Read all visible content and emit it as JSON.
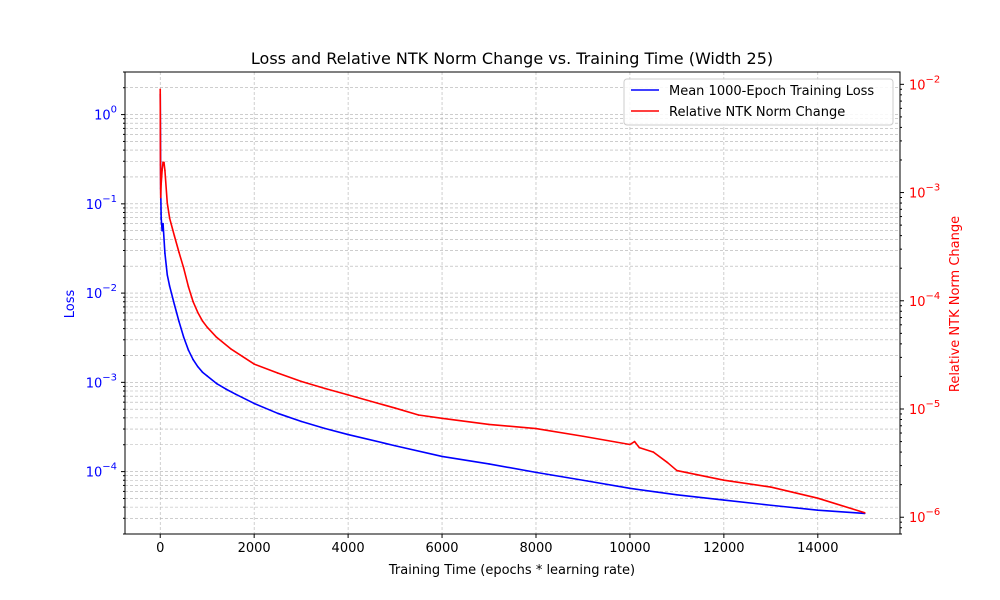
{
  "chart_data": {
    "type": "line",
    "title": "Loss and Relative NTK Norm Change vs. Training Time (Width 25)",
    "xlabel": "Training Time (epochs * learning rate)",
    "ylabel_left": "Loss",
    "ylabel_right": "Relative NTK Norm Change",
    "xlim": [
      -750,
      15750
    ],
    "ylim_left": [
      2e-05,
      3.0
    ],
    "ylim_right": [
      7e-07,
      0.013
    ],
    "y_scale": "log",
    "grid": true,
    "legend_position": "top-right",
    "x_ticks": [
      {
        "value": 0,
        "label": "0"
      },
      {
        "value": 2000,
        "label": "2000"
      },
      {
        "value": 4000,
        "label": "4000"
      },
      {
        "value": 6000,
        "label": "6000"
      },
      {
        "value": 8000,
        "label": "8000"
      },
      {
        "value": 10000,
        "label": "10000"
      },
      {
        "value": 12000,
        "label": "12000"
      },
      {
        "value": 14000,
        "label": "14000"
      }
    ],
    "y_ticks_left": [
      {
        "value": 1,
        "label": "10^0"
      },
      {
        "value": 0.1,
        "label": "10^-1"
      },
      {
        "value": 0.01,
        "label": "10^-2"
      },
      {
        "value": 0.001,
        "label": "10^-3"
      },
      {
        "value": 0.0001,
        "label": "10^-4"
      }
    ],
    "y_ticks_right": [
      {
        "value": 0.01,
        "label": "10^-2"
      },
      {
        "value": 0.001,
        "label": "10^-3"
      },
      {
        "value": 0.0001,
        "label": "10^-4"
      },
      {
        "value": 1e-05,
        "label": "10^-5"
      },
      {
        "value": 1e-06,
        "label": "10^-6"
      }
    ],
    "series": [
      {
        "name": "Mean 1000-Epoch Training Loss",
        "color": "#0000ff",
        "axis": "left",
        "x": [
          0,
          5,
          10,
          20,
          40,
          60,
          100,
          150,
          200,
          300,
          400,
          500,
          600,
          700,
          800,
          900,
          1000,
          1200,
          1400,
          1600,
          2000,
          2500,
          3000,
          3500,
          4000,
          5000,
          6000,
          7000,
          8000,
          9000,
          10000,
          11000,
          12000,
          13000,
          14000,
          15000
        ],
        "values": [
          1.7,
          0.6,
          0.15,
          0.07,
          0.05,
          0.06,
          0.028,
          0.016,
          0.012,
          0.0075,
          0.0048,
          0.0032,
          0.0023,
          0.0018,
          0.0015,
          0.0013,
          0.00118,
          0.00097,
          0.00084,
          0.00074,
          0.00058,
          0.00045,
          0.000365,
          0.000305,
          0.00026,
          0.000195,
          0.000148,
          0.000122,
          9.8e-05,
          8e-05,
          6.5e-05,
          5.5e-05,
          4.8e-05,
          4.2e-05,
          3.7e-05,
          3.4e-05
        ]
      },
      {
        "name": "Relative NTK Norm Change",
        "color": "#ff0000",
        "axis": "right",
        "x": [
          0,
          5,
          10,
          20,
          40,
          60,
          80,
          100,
          150,
          200,
          300,
          400,
          500,
          600,
          700,
          800,
          900,
          1000,
          1200,
          1500,
          2000,
          2500,
          3000,
          3500,
          4000,
          5000,
          5500,
          6000,
          7000,
          8000,
          9000,
          10000,
          10100,
          10200,
          10500,
          10800,
          11000,
          12000,
          13000,
          14000,
          15000
        ],
        "values": [
          0.009,
          0.0018,
          0.0009,
          0.0012,
          0.0016,
          0.0019,
          0.0019,
          0.0016,
          0.0008,
          0.00058,
          0.0004,
          0.00028,
          0.0002,
          0.000135,
          9.8e-05,
          7.8e-05,
          6.5e-05,
          5.7e-05,
          4.6e-05,
          3.6e-05,
          2.6e-05,
          2.15e-05,
          1.8e-05,
          1.55e-05,
          1.35e-05,
          1.02e-05,
          8.8e-06,
          8.2e-06,
          7.2e-06,
          6.6e-06,
          5.6e-06,
          4.7e-06,
          5e-06,
          4.4e-06,
          4e-06,
          3.2e-06,
          2.7e-06,
          2.2e-06,
          1.9e-06,
          1.5e-06,
          1.1e-06
        ]
      }
    ]
  }
}
